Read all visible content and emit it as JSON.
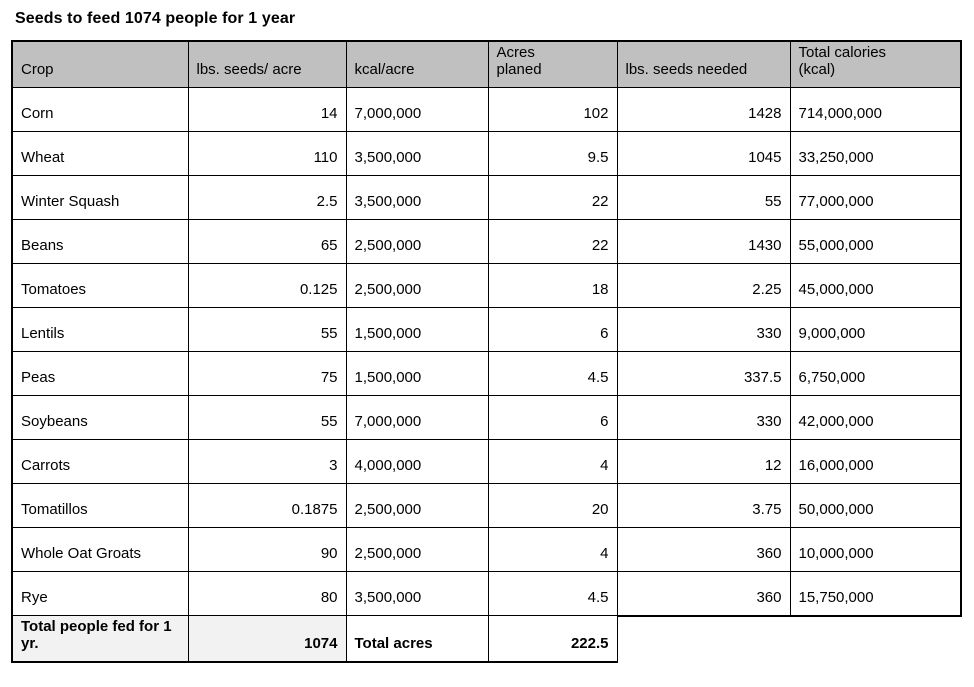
{
  "title": "Seeds to feed 1074 people for 1 year",
  "colors": {
    "header_bg": "#c0c0c0",
    "total_row_bg": "#f2f2f2",
    "border": "#000000"
  },
  "table": {
    "columns": [
      "Crop",
      "lbs. seeds/ acre",
      "kcal/acre",
      "Acres\nplaned",
      "lbs. seeds needed",
      "Total calories\n(kcal)"
    ],
    "rows": [
      [
        "Corn",
        "14",
        "7,000,000",
        "102",
        "1428",
        "714,000,000"
      ],
      [
        "Wheat",
        "110",
        "3,500,000",
        "9.5",
        "1045",
        "33,250,000"
      ],
      [
        "Winter Squash",
        "2.5",
        "3,500,000",
        "22",
        "55",
        "77,000,000"
      ],
      [
        "Beans",
        "65",
        "2,500,000",
        "22",
        "1430",
        "55,000,000"
      ],
      [
        "Tomatoes",
        "0.125",
        "2,500,000",
        "18",
        "2.25",
        "45,000,000"
      ],
      [
        "Lentils",
        "55",
        "1,500,000",
        "6",
        "330",
        "9,000,000"
      ],
      [
        "Peas",
        "75",
        "1,500,000",
        "4.5",
        "337.5",
        "6,750,000"
      ],
      [
        "Soybeans",
        "55",
        "7,000,000",
        "6",
        "330",
        "42,000,000"
      ],
      [
        "Carrots",
        "3",
        "4,000,000",
        "4",
        "12",
        "16,000,000"
      ],
      [
        "Tomatillos",
        "0.1875",
        "2,500,000",
        "20",
        "3.75",
        "50,000,000"
      ],
      [
        "Whole Oat Groats",
        "90",
        "2,500,000",
        "4",
        "360",
        "10,000,000"
      ],
      [
        "Rye",
        "80",
        "3,500,000",
        "4.5",
        "360",
        "15,750,000"
      ]
    ],
    "footer": {
      "people_label": "Total people fed for 1 yr.",
      "people_value": "1074",
      "acres_label": "Total acres",
      "acres_value": "222.5"
    }
  }
}
